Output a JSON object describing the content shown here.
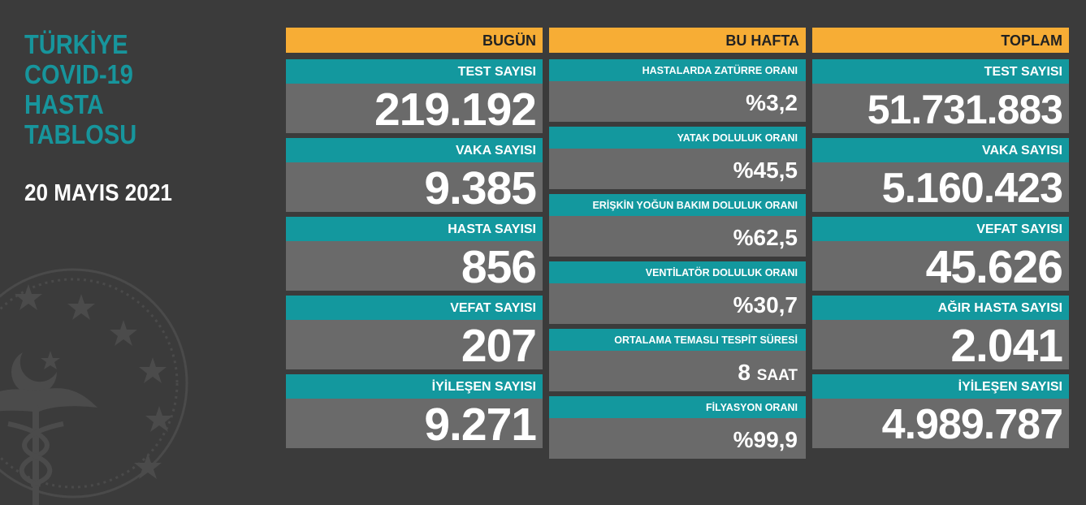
{
  "title_lines": [
    "TÜRKİYE",
    "COVID-19",
    "HASTA",
    "TABLOSU"
  ],
  "date": "20 MAYIS 2021",
  "today": {
    "header": "BUGÜN",
    "items": [
      {
        "label": "TEST SAYISI",
        "value": "219.192"
      },
      {
        "label": "VAKA SAYISI",
        "value": "9.385"
      },
      {
        "label": "HASTA SAYISI",
        "value": "856"
      },
      {
        "label": "VEFAT SAYISI",
        "value": "207"
      },
      {
        "label": "İYİLEŞEN SAYISI",
        "value": "9.271"
      }
    ]
  },
  "week": {
    "header": "BU HAFTA",
    "items": [
      {
        "label": "HASTALARDA ZATÜRRE ORANI",
        "value": "%3,2",
        "unit": ""
      },
      {
        "label": "YATAK DOLULUK ORANI",
        "value": "%45,5",
        "unit": ""
      },
      {
        "label": "ERİŞKİN YOĞUN BAKIM DOLULUK ORANI",
        "value": "%62,5",
        "unit": ""
      },
      {
        "label": "VENTİLATÖR DOLULUK ORANI",
        "value": "%30,7",
        "unit": ""
      },
      {
        "label": "ORTALAMA TEMASLI TESPİT SÜRESİ",
        "value": "8",
        "unit": "SAAT"
      },
      {
        "label": "FİLYASYON ORANI",
        "value": "%99,9",
        "unit": ""
      }
    ]
  },
  "total": {
    "header": "TOPLAM",
    "items": [
      {
        "label": "TEST SAYISI",
        "value": "51.731.883"
      },
      {
        "label": "VAKA SAYISI",
        "value": "5.160.423"
      },
      {
        "label": "VEFAT SAYISI",
        "value": "45.626"
      },
      {
        "label": "AĞIR HASTA SAYISI",
        "value": "2.041"
      },
      {
        "label": "İYİLEŞEN SAYISI",
        "value": "4.989.787"
      }
    ]
  },
  "colors": {
    "background": "#3b3b3b",
    "header": "#f7ad35",
    "label": "#13989e",
    "value": "#6a6a6a",
    "title": "#17959c"
  },
  "icons": [
    "ministry-emblem-icon"
  ]
}
